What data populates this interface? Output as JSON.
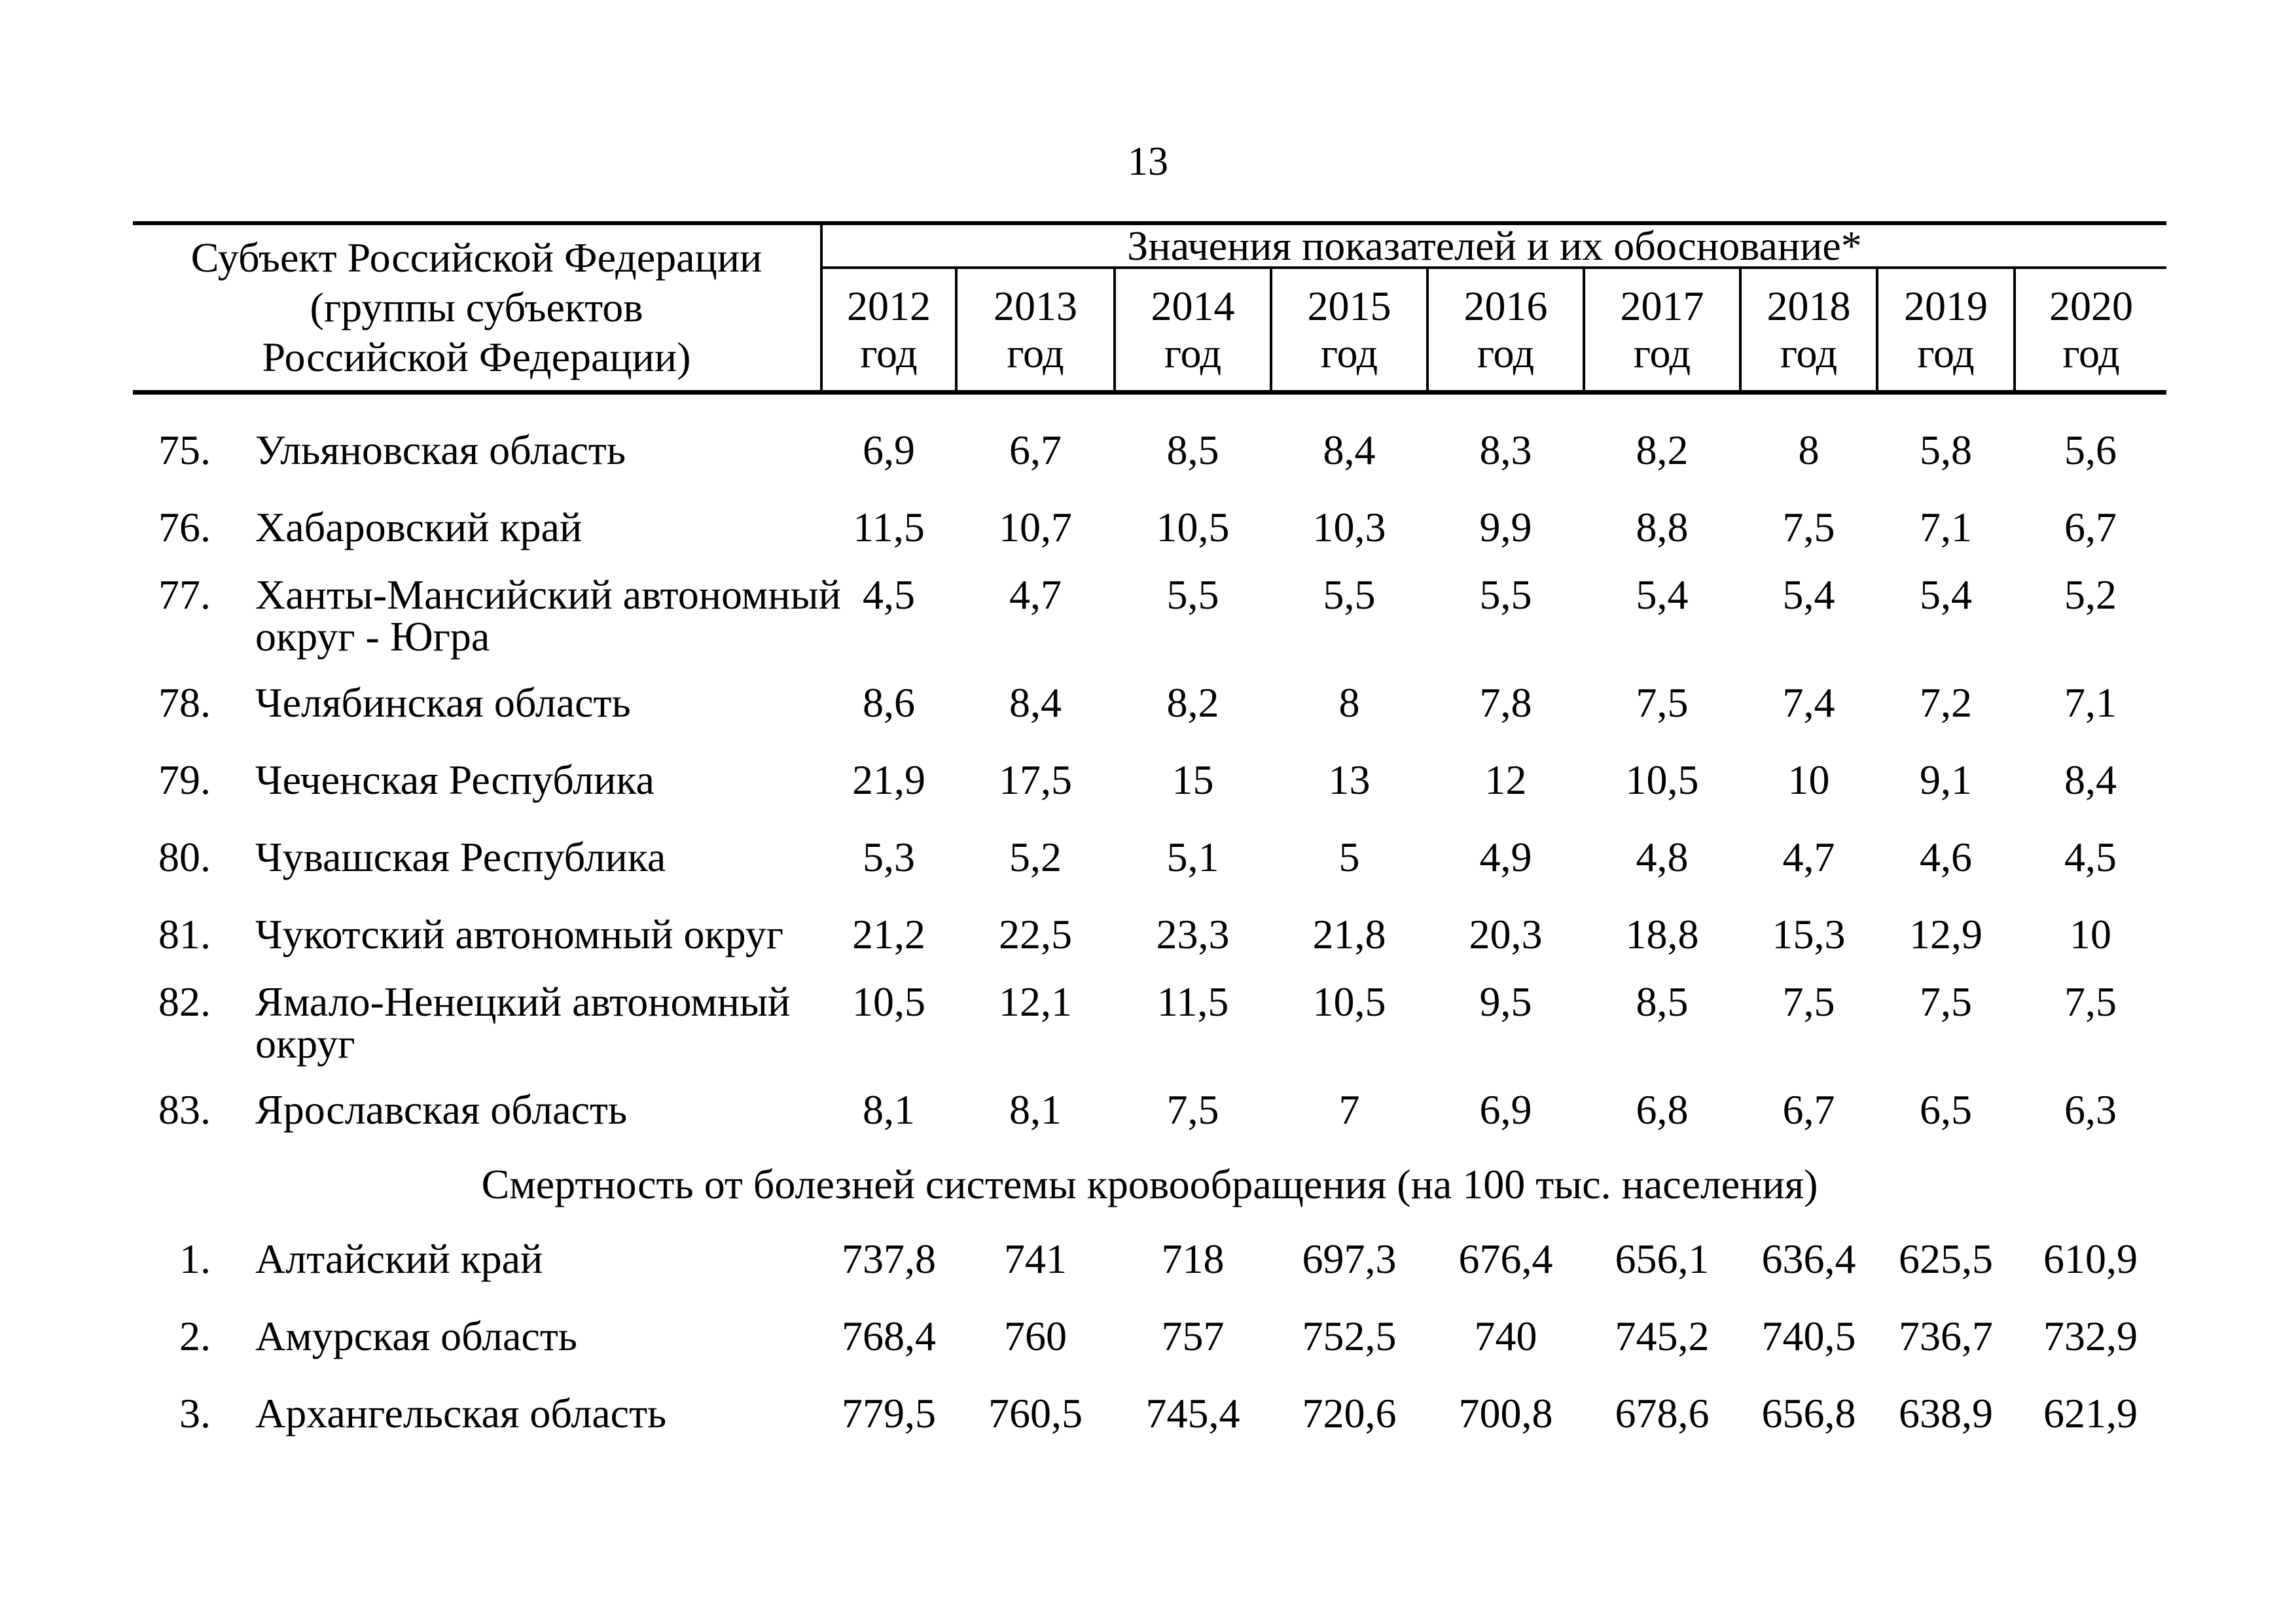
{
  "page": {
    "number": "13"
  },
  "table": {
    "header": {
      "subject_label": "Субъект Российской Федерации\n(группы субъектов\nРоссийской Федерации)",
      "values_label": "Значения показателей и их обоснование*",
      "years": [
        "2012",
        "2013",
        "2014",
        "2015",
        "2016",
        "2017",
        "2018",
        "2019",
        "2020"
      ],
      "year_unit": "год"
    },
    "sections": [
      {
        "title": "",
        "rows": [
          {
            "num": "75.",
            "name": "Ульяновская область",
            "values": [
              "6,9",
              "6,7",
              "8,5",
              "8,4",
              "8,3",
              "8,2",
              "8",
              "5,8",
              "5,6"
            ]
          },
          {
            "num": "76.",
            "name": "Хабаровский край",
            "values": [
              "11,5",
              "10,7",
              "10,5",
              "10,3",
              "9,9",
              "8,8",
              "7,5",
              "7,1",
              "6,7"
            ]
          },
          {
            "num": "77.",
            "name": "Ханты-Мансийский автономный\nокруг - Югра",
            "values": [
              "4,5",
              "4,7",
              "5,5",
              "5,5",
              "5,5",
              "5,4",
              "5,4",
              "5,4",
              "5,2"
            ]
          },
          {
            "num": "78.",
            "name": "Челябинская область",
            "values": [
              "8,6",
              "8,4",
              "8,2",
              "8",
              "7,8",
              "7,5",
              "7,4",
              "7,2",
              "7,1"
            ]
          },
          {
            "num": "79.",
            "name": "Чеченская Республика",
            "values": [
              "21,9",
              "17,5",
              "15",
              "13",
              "12",
              "10,5",
              "10",
              "9,1",
              "8,4"
            ]
          },
          {
            "num": "80.",
            "name": "Чувашская Республика",
            "values": [
              "5,3",
              "5,2",
              "5,1",
              "5",
              "4,9",
              "4,8",
              "4,7",
              "4,6",
              "4,5"
            ]
          },
          {
            "num": "81.",
            "name": "Чукотский автономный округ",
            "values": [
              "21,2",
              "22,5",
              "23,3",
              "21,8",
              "20,3",
              "18,8",
              "15,3",
              "12,9",
              "10"
            ]
          },
          {
            "num": "82.",
            "name": "Ямало-Ненецкий автономный\nокруг",
            "values": [
              "10,5",
              "12,1",
              "11,5",
              "10,5",
              "9,5",
              "8,5",
              "7,5",
              "7,5",
              "7,5"
            ]
          },
          {
            "num": "83.",
            "name": "Ярославская область",
            "values": [
              "8,1",
              "8,1",
              "7,5",
              "7",
              "6,9",
              "6,8",
              "6,7",
              "6,5",
              "6,3"
            ]
          }
        ]
      },
      {
        "title": "Смертность от болезней системы кровообращения (на 100 тыс. населения)",
        "rows": [
          {
            "num": "1.",
            "name": "Алтайский край",
            "values": [
              "737,8",
              "741",
              "718",
              "697,3",
              "676,4",
              "656,1",
              "636,4",
              "625,5",
              "610,9"
            ]
          },
          {
            "num": "2.",
            "name": "Амурская область",
            "values": [
              "768,4",
              "760",
              "757",
              "752,5",
              "740",
              "745,2",
              "740,5",
              "736,7",
              "732,9"
            ]
          },
          {
            "num": "3.",
            "name": "Архангельская область",
            "values": [
              "779,5",
              "760,5",
              "745,4",
              "720,6",
              "700,8",
              "678,6",
              "656,8",
              "638,9",
              "621,9"
            ]
          }
        ]
      }
    ]
  }
}
